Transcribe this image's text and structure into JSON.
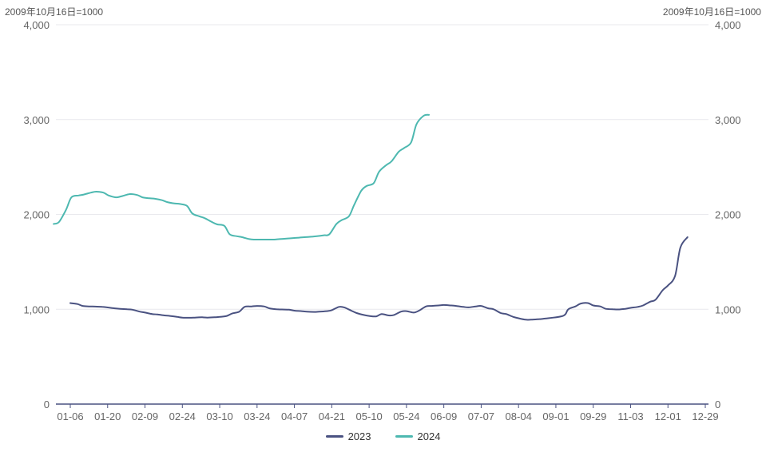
{
  "chart_data": {
    "type": "line",
    "unit_label_left": "2009年10月16日=1000",
    "unit_label_right": "2009年10月16日=1000",
    "x_tick_labels": [
      "01-06",
      "01-20",
      "02-09",
      "02-24",
      "03-10",
      "03-24",
      "04-07",
      "04-21",
      "05-10",
      "05-24",
      "06-09",
      "07-07",
      "08-04",
      "09-01",
      "09-29",
      "11-03",
      "12-01",
      "12-29"
    ],
    "y_ticks": [
      0,
      1000,
      2000,
      3000,
      4000
    ],
    "y_tick_labels": [
      "0",
      "1,000",
      "2,000",
      "3,000",
      "4,000"
    ],
    "ylim": [
      0,
      4000
    ],
    "grid": true,
    "legend_position": "bottom-center",
    "series": [
      {
        "name": "2023",
        "color": "#4a5281",
        "points": [
          [
            "01-06",
            1065
          ],
          [
            "01-10",
            1055
          ],
          [
            "01-13",
            1035
          ],
          [
            "01-17",
            1030
          ],
          [
            "01-20",
            1028
          ],
          [
            "01-24",
            1025
          ],
          [
            "01-31",
            1010
          ],
          [
            "02-03",
            1005
          ],
          [
            "02-07",
            1000
          ],
          [
            "02-10",
            995
          ],
          [
            "02-14",
            975
          ],
          [
            "02-17",
            965
          ],
          [
            "02-21",
            950
          ],
          [
            "02-24",
            945
          ],
          [
            "02-28",
            935
          ],
          [
            "03-03",
            930
          ],
          [
            "03-07",
            920
          ],
          [
            "03-10",
            912
          ],
          [
            "03-14",
            910
          ],
          [
            "03-17",
            912
          ],
          [
            "03-21",
            915
          ],
          [
            "03-24",
            912
          ],
          [
            "03-28",
            915
          ],
          [
            "03-31",
            920
          ],
          [
            "04-04",
            930
          ],
          [
            "04-07",
            955
          ],
          [
            "04-11",
            975
          ],
          [
            "04-14",
            1025
          ],
          [
            "04-18",
            1030
          ],
          [
            "04-21",
            1035
          ],
          [
            "04-25",
            1030
          ],
          [
            "04-28",
            1010
          ],
          [
            "05-02",
            1000
          ],
          [
            "05-05",
            998
          ],
          [
            "05-09",
            995
          ],
          [
            "05-12",
            985
          ],
          [
            "05-16",
            980
          ],
          [
            "05-19",
            975
          ],
          [
            "05-23",
            972
          ],
          [
            "05-26",
            975
          ],
          [
            "05-30",
            980
          ],
          [
            "06-02",
            990
          ],
          [
            "06-06",
            1025
          ],
          [
            "06-09",
            1020
          ],
          [
            "06-13",
            985
          ],
          [
            "06-16",
            960
          ],
          [
            "06-20",
            940
          ],
          [
            "06-23",
            930
          ],
          [
            "06-27",
            925
          ],
          [
            "06-30",
            950
          ],
          [
            "07-04",
            935
          ],
          [
            "07-07",
            940
          ],
          [
            "07-11",
            975
          ],
          [
            "07-14",
            980
          ],
          [
            "07-18",
            965
          ],
          [
            "07-21",
            985
          ],
          [
            "07-25",
            1030
          ],
          [
            "07-28",
            1035
          ],
          [
            "08-01",
            1040
          ],
          [
            "08-04",
            1045
          ],
          [
            "08-08",
            1040
          ],
          [
            "08-11",
            1035
          ],
          [
            "08-15",
            1025
          ],
          [
            "08-18",
            1020
          ],
          [
            "08-22",
            1030
          ],
          [
            "08-25",
            1035
          ],
          [
            "08-29",
            1010
          ],
          [
            "09-01",
            1000
          ],
          [
            "09-05",
            960
          ],
          [
            "09-08",
            950
          ],
          [
            "09-12",
            920
          ],
          [
            "09-15",
            905
          ],
          [
            "09-19",
            890
          ],
          [
            "09-22",
            890
          ],
          [
            "09-26",
            895
          ],
          [
            "09-29",
            900
          ],
          [
            "10-10",
            930
          ],
          [
            "10-13",
            1000
          ],
          [
            "10-17",
            1030
          ],
          [
            "10-20",
            1060
          ],
          [
            "10-24",
            1065
          ],
          [
            "10-27",
            1040
          ],
          [
            "10-31",
            1030
          ],
          [
            "11-03",
            1005
          ],
          [
            "11-07",
            1000
          ],
          [
            "11-10",
            998
          ],
          [
            "11-14",
            1005
          ],
          [
            "11-17",
            1015
          ],
          [
            "11-21",
            1025
          ],
          [
            "11-24",
            1040
          ],
          [
            "11-28",
            1080
          ],
          [
            "12-01",
            1100
          ],
          [
            "12-05",
            1200
          ],
          [
            "12-08",
            1250
          ],
          [
            "12-12",
            1350
          ],
          [
            "12-15",
            1650
          ],
          [
            "12-19",
            1760
          ]
        ]
      },
      {
        "name": "2024",
        "color": "#4db8b0",
        "points": [
          [
            "01-02",
            1900
          ],
          [
            "01-05",
            1920
          ],
          [
            "01-09",
            2050
          ],
          [
            "01-12",
            2180
          ],
          [
            "01-16",
            2200
          ],
          [
            "01-19",
            2210
          ],
          [
            "01-23",
            2230
          ],
          [
            "01-26",
            2240
          ],
          [
            "01-30",
            2230
          ],
          [
            "02-02",
            2200
          ],
          [
            "02-06",
            2180
          ],
          [
            "02-09",
            2190
          ],
          [
            "02-14",
            2215
          ],
          [
            "02-18",
            2205
          ],
          [
            "02-21",
            2180
          ],
          [
            "02-25",
            2170
          ],
          [
            "02-28",
            2165
          ],
          [
            "03-04",
            2150
          ],
          [
            "03-07",
            2130
          ],
          [
            "03-11",
            2115
          ],
          [
            "03-14",
            2110
          ],
          [
            "03-18",
            2090
          ],
          [
            "03-21",
            2010
          ],
          [
            "03-25",
            1980
          ],
          [
            "03-28",
            1960
          ],
          [
            "04-01",
            1920
          ],
          [
            "04-04",
            1895
          ],
          [
            "04-08",
            1880
          ],
          [
            "04-11",
            1790
          ],
          [
            "04-15",
            1770
          ],
          [
            "04-18",
            1760
          ],
          [
            "04-22",
            1740
          ],
          [
            "04-25",
            1735
          ],
          [
            "04-29",
            1735
          ],
          [
            "05-02",
            1735
          ],
          [
            "05-06",
            1735
          ],
          [
            "05-09",
            1740
          ],
          [
            "05-13",
            1745
          ],
          [
            "05-16",
            1750
          ],
          [
            "05-20",
            1755
          ],
          [
            "05-23",
            1760
          ],
          [
            "05-27",
            1765
          ],
          [
            "05-30",
            1770
          ],
          [
            "06-03",
            1780
          ],
          [
            "06-06",
            1790
          ],
          [
            "06-10",
            1900
          ],
          [
            "06-13",
            1940
          ],
          [
            "06-17",
            1980
          ],
          [
            "06-20",
            2100
          ],
          [
            "06-24",
            2250
          ],
          [
            "06-27",
            2300
          ],
          [
            "07-01",
            2330
          ],
          [
            "07-04",
            2450
          ],
          [
            "07-08",
            2520
          ],
          [
            "07-11",
            2560
          ],
          [
            "07-15",
            2660
          ],
          [
            "07-18",
            2700
          ],
          [
            "07-22",
            2760
          ],
          [
            "07-25",
            2950
          ],
          [
            "07-29",
            3040
          ],
          [
            "08-01",
            3050
          ]
        ]
      }
    ]
  }
}
